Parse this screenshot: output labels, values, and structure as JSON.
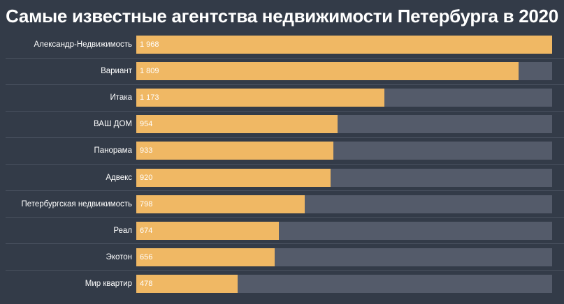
{
  "chart_data": {
    "type": "bar",
    "orientation": "horizontal",
    "title": "Самые известные агентства недвижимости Петербурга в 2020",
    "categories": [
      "Александр-Недвижимость",
      "Вариант",
      "Итака",
      "ВАШ ДОМ",
      "Панорама",
      "Адвекс",
      "Петербургская недвижимость",
      "Реал",
      "Экотон",
      "Мир квартир"
    ],
    "values": [
      1968,
      1809,
      1173,
      954,
      933,
      920,
      798,
      674,
      656,
      478
    ],
    "value_labels": [
      "1 968",
      "1 809",
      "1 173",
      "954",
      "933",
      "920",
      "798",
      "674",
      "656",
      "478"
    ],
    "xlim": [
      0,
      1968
    ],
    "grid": false,
    "colors": {
      "background": "#333b48",
      "bar": "#f0b864",
      "track": "#545b6a",
      "text": "#ffffff"
    }
  }
}
